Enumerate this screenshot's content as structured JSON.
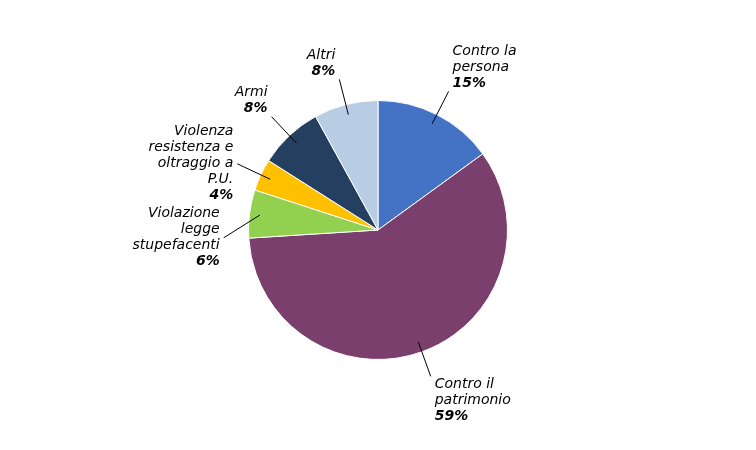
{
  "chart_data": {
    "type": "pie",
    "categories": [
      [
        "Contro la",
        "persona"
      ],
      [
        "Contro il",
        "patrimonio"
      ],
      [
        "Violazione",
        "legge",
        "stupefacenti"
      ],
      [
        "Violenza",
        "resistenza e",
        "oltraggio a",
        "P.U."
      ],
      [
        "Armi"
      ],
      [
        "Altri"
      ]
    ],
    "values": [
      15,
      59,
      6,
      4,
      8,
      8
    ],
    "value_labels": [
      "15%",
      "59%",
      "6%",
      "4%",
      "8%",
      "8%"
    ],
    "colors": [
      "#4472C4",
      "#7B3F6E",
      "#92D050",
      "#FFC000",
      "#243F60",
      "#B8CCE4"
    ],
    "data_labels": true
  }
}
